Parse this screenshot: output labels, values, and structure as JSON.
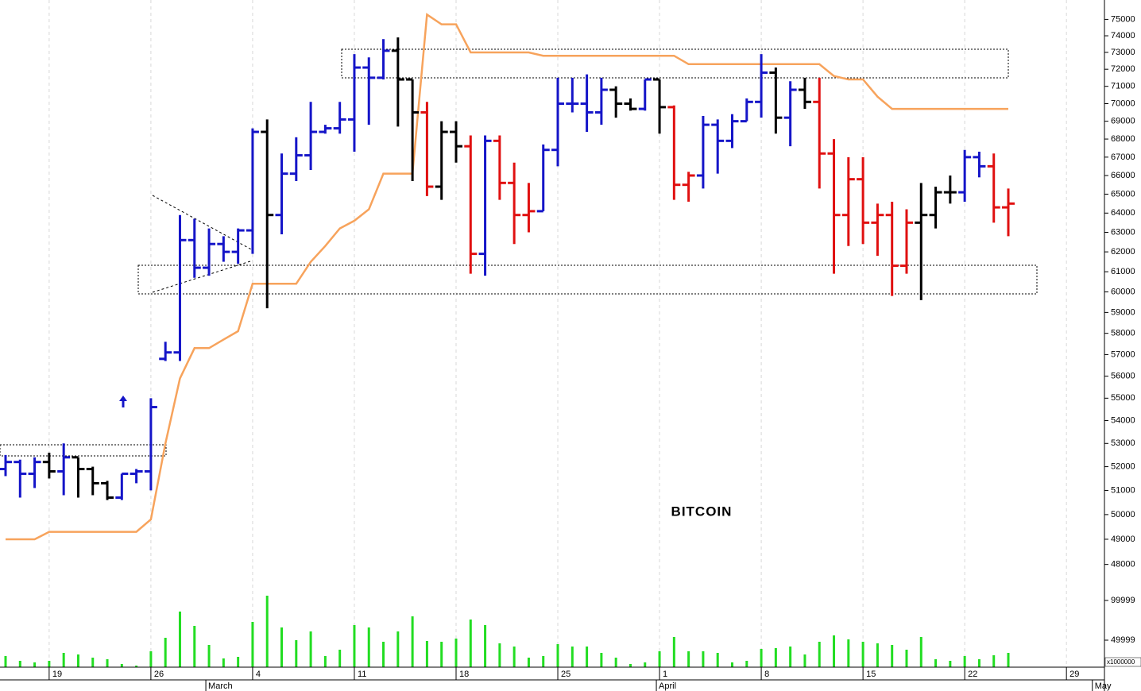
{
  "chart_data": {
    "type": "ohlc",
    "title": "BITCOIN",
    "categories": [
      null,
      null,
      null,
      "19",
      null,
      null,
      null,
      null,
      null,
      null,
      "26",
      null,
      null,
      null,
      null,
      null,
      null,
      "4",
      null,
      null,
      null,
      null,
      null,
      null,
      "11",
      null,
      null,
      null,
      null,
      null,
      null,
      "18",
      null,
      null,
      null,
      null,
      null,
      null,
      "25",
      null,
      null,
      null,
      null,
      null,
      null,
      "1",
      null,
      null,
      null,
      null,
      null,
      null,
      "8",
      null,
      null,
      null,
      null,
      null,
      null,
      "15",
      null,
      null,
      null,
      null,
      null,
      null,
      "22",
      null,
      null,
      null,
      null,
      null,
      null,
      "29",
      null,
      null
    ],
    "months": [
      null,
      null,
      null,
      null,
      null,
      null,
      null,
      null,
      null,
      null,
      null,
      null,
      null,
      null,
      "March",
      null,
      null,
      null,
      null,
      null,
      null,
      null,
      null,
      null,
      null,
      null,
      null,
      null,
      null,
      null,
      null,
      null,
      null,
      null,
      null,
      null,
      null,
      null,
      null,
      null,
      null,
      null,
      null,
      null,
      null,
      "April",
      null,
      null,
      null,
      null,
      null,
      null,
      null,
      null,
      null,
      null,
      null,
      null,
      null,
      null,
      null,
      null,
      null,
      null,
      null,
      null,
      null,
      null,
      null,
      null,
      null,
      null,
      null,
      null,
      null,
      "May"
    ],
    "open": [
      51900,
      52200,
      51700,
      52200,
      51800,
      52400,
      51900,
      51300,
      50700,
      51700,
      51800,
      56800,
      57100,
      62600,
      61200,
      62400,
      62000,
      63100,
      68400,
      63900,
      66100,
      67100,
      68400,
      68600,
      69100,
      72100,
      71500,
      73100,
      71400,
      69500,
      65400,
      68400,
      67600,
      61900,
      67900,
      65600,
      63900,
      64100,
      67400,
      70000,
      70000,
      69500,
      70800,
      70000,
      69700,
      71400,
      69800,
      65500,
      66000,
      68800,
      67900,
      69000,
      70100,
      71800,
      69200,
      70800,
      70100,
      67200,
      63900,
      65800,
      63500,
      63900,
      61300,
      63500,
      63900,
      65100,
      65100,
      67000,
      66500,
      64300,
      null,
      null,
      null,
      null,
      null,
      null
    ],
    "high": [
      52500,
      52300,
      52400,
      52600,
      53000,
      52400,
      52000,
      51400,
      51700,
      51900,
      55000,
      57600,
      63900,
      63700,
      63200,
      62800,
      63200,
      68600,
      69100,
      67200,
      68100,
      70100,
      68800,
      70100,
      72900,
      72700,
      73800,
      73900,
      71400,
      70100,
      69000,
      69000,
      68200,
      68200,
      68200,
      66700,
      65600,
      67700,
      71500,
      71500,
      71700,
      71500,
      71000,
      70300,
      71400,
      71400,
      69900,
      66200,
      69300,
      69100,
      69400,
      70300,
      72900,
      72100,
      71300,
      71500,
      71500,
      68000,
      67000,
      67000,
      64500,
      64600,
      64200,
      65600,
      65400,
      66000,
      67400,
      67300,
      67200,
      65300,
      null,
      null,
      null,
      null,
      null,
      null
    ],
    "low": [
      51600,
      50700,
      51100,
      51500,
      50800,
      50700,
      50800,
      50600,
      50600,
      51300,
      51000,
      56700,
      56700,
      60700,
      60800,
      61500,
      61400,
      61900,
      59200,
      62900,
      65700,
      66300,
      68300,
      68300,
      67300,
      68800,
      71400,
      68700,
      65700,
      64900,
      64700,
      66700,
      60900,
      60800,
      64700,
      62400,
      63000,
      64100,
      66500,
      69500,
      68400,
      68800,
      69200,
      69600,
      69600,
      68300,
      64700,
      64600,
      65300,
      66100,
      67500,
      69000,
      69200,
      68300,
      67600,
      69700,
      65300,
      60900,
      62300,
      62400,
      61800,
      59800,
      60900,
      59600,
      63200,
      64500,
      64600,
      65900,
      63500,
      62800,
      null,
      null,
      null,
      null,
      null,
      null
    ],
    "close": [
      52200,
      51700,
      52200,
      51800,
      52400,
      51900,
      51300,
      50700,
      51700,
      51800,
      54600,
      57100,
      62600,
      61200,
      62400,
      62000,
      63100,
      68400,
      63900,
      66100,
      67100,
      68400,
      68600,
      69100,
      72100,
      71500,
      73100,
      71400,
      69500,
      65400,
      68400,
      67600,
      61900,
      67900,
      65600,
      63900,
      64100,
      67400,
      70000,
      70000,
      69500,
      70800,
      70000,
      69700,
      71400,
      69800,
      65500,
      66000,
      68800,
      67900,
      69000,
      70100,
      71800,
      69200,
      70800,
      70100,
      67200,
      63900,
      65800,
      63500,
      63900,
      61300,
      63500,
      63900,
      65100,
      65100,
      67000,
      66500,
      64300,
      64500,
      null,
      null,
      null,
      null,
      null,
      null
    ],
    "bar_colors": [
      "#1515c8",
      "#1515c8",
      "#1515c8",
      "#000000",
      "#1515c8",
      "#000000",
      "#000000",
      "#000000",
      "#1515c8",
      "#1515c8",
      "#1515c8",
      "#1515c8",
      "#1515c8",
      "#1515c8",
      "#1515c8",
      "#1515c8",
      "#1515c8",
      "#1515c8",
      "#000000",
      "#1515c8",
      "#1515c8",
      "#1515c8",
      "#1515c8",
      "#1515c8",
      "#1515c8",
      "#1515c8",
      "#1515c8",
      "#000000",
      "#000000",
      "#e01010",
      "#000000",
      "#000000",
      "#e01010",
      "#1515c8",
      "#e01010",
      "#e01010",
      "#e01010",
      "#1515c8",
      "#1515c8",
      "#1515c8",
      "#1515c8",
      "#1515c8",
      "#000000",
      "#000000",
      "#1515c8",
      "#000000",
      "#e01010",
      "#e01010",
      "#1515c8",
      "#1515c8",
      "#1515c8",
      "#1515c8",
      "#1515c8",
      "#000000",
      "#1515c8",
      "#000000",
      "#e01010",
      "#e01010",
      "#e01010",
      "#e01010",
      "#e01010",
      "#e01010",
      "#e01010",
      "#000000",
      "#000000",
      "#000000",
      "#1515c8",
      "#1515c8",
      "#e01010",
      "#e01010",
      null,
      null,
      null,
      null,
      null,
      null
    ],
    "ylim": [
      47400,
      76200
    ],
    "log_scale": true,
    "yticks": [
      48000,
      49000,
      50000,
      51000,
      52000,
      53000,
      54000,
      55000,
      56000,
      57000,
      58000,
      59000,
      60000,
      61000,
      62000,
      63000,
      64000,
      65000,
      66000,
      67000,
      68000,
      69000,
      70000,
      71000,
      72000,
      73000,
      74000,
      75000
    ],
    "grid": true,
    "overlay": {
      "type": "line",
      "color": "#f7a35c",
      "values": [
        49000,
        49000,
        49000,
        49300,
        49300,
        49300,
        49300,
        49300,
        49300,
        49300,
        49800,
        53000,
        55900,
        57300,
        57300,
        57700,
        58100,
        60400,
        60400,
        60400,
        60400,
        61500,
        62300,
        63200,
        63600,
        64200,
        66100,
        66100,
        66100,
        75300,
        74700,
        74700,
        73000,
        73000,
        73000,
        73000,
        73000,
        72800,
        72800,
        72800,
        72800,
        72800,
        72800,
        72800,
        72800,
        72800,
        72800,
        72300,
        72300,
        72300,
        72300,
        72300,
        72300,
        72300,
        72300,
        72300,
        72300,
        71600,
        71400,
        71400,
        70400,
        69700,
        69700,
        69700,
        69700,
        69700,
        69700,
        69700,
        69700,
        69700,
        null,
        null,
        null,
        null,
        null,
        null
      ]
    },
    "volume": {
      "type": "bar",
      "color": "#22dd22",
      "unit_label": "x1000000",
      "ylim": [
        16000,
        111000
      ],
      "yticks": [
        49999,
        99999
      ],
      "values": [
        30000,
        24000,
        22000,
        24000,
        34000,
        32000,
        28000,
        26000,
        20000,
        18000,
        36000,
        53000,
        86000,
        68000,
        44000,
        27000,
        29000,
        73000,
        106000,
        66000,
        50000,
        61000,
        30000,
        38000,
        69000,
        66000,
        48000,
        61000,
        80000,
        49000,
        48000,
        52000,
        76000,
        69000,
        46000,
        42000,
        28000,
        30000,
        45000,
        42000,
        42000,
        34000,
        28000,
        20000,
        22000,
        36000,
        54000,
        36000,
        36000,
        34000,
        22000,
        24000,
        39000,
        40000,
        42000,
        32000,
        48000,
        56000,
        51000,
        48000,
        46000,
        44000,
        38000,
        54000,
        26000,
        24000,
        30000,
        26000,
        31000,
        34000,
        null,
        null,
        null,
        null,
        null,
        null
      ]
    }
  }
}
